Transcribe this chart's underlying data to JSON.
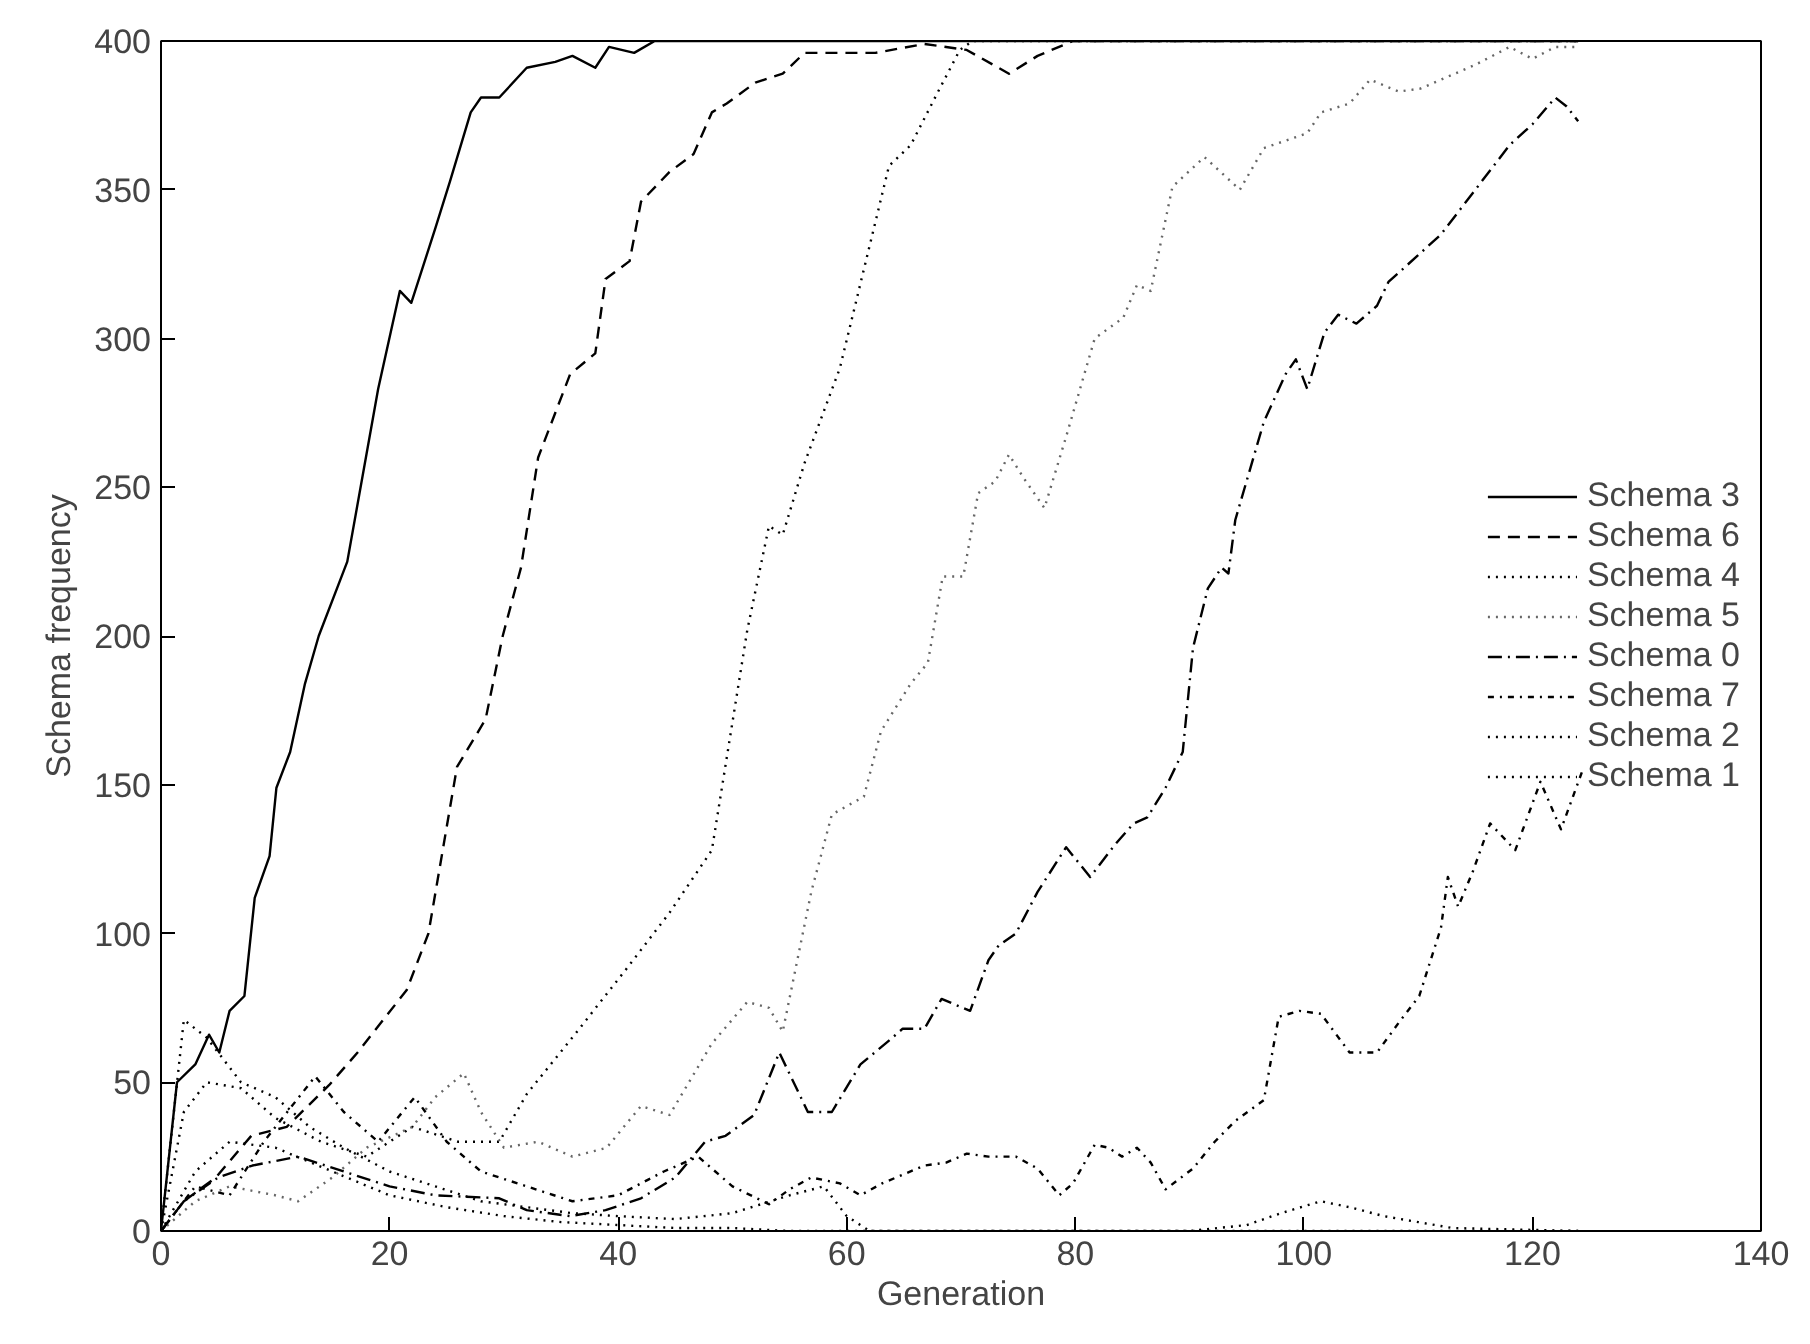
{
  "chart_data": {
    "type": "line",
    "xlabel": "Generation",
    "ylabel": "Schema frequency",
    "xlim": [
      0,
      140
    ],
    "ylim": [
      0,
      400
    ],
    "xticks": [
      0,
      20,
      40,
      60,
      80,
      100,
      120,
      140
    ],
    "yticks": [
      0,
      50,
      100,
      150,
      200,
      250,
      300,
      350,
      400
    ],
    "grid": false,
    "legend": "right",
    "marker": "none",
    "series": [
      {
        "name": "Schema 3",
        "color": "#000000",
        "line_style": "solid",
        "x": [
          0,
          1.4,
          3,
          4.2,
          5.1,
          6,
          7.3,
          8.2,
          9.5,
          10.1,
          11.3,
          12.6,
          13.8,
          16.3,
          19,
          20.9,
          21.9,
          24,
          25.3,
          27.1,
          28,
          29.6,
          32,
          34.5,
          36,
          38,
          39.2,
          41.4,
          43.2,
          124
        ],
        "values": [
          0,
          50,
          56,
          66,
          60,
          74,
          79,
          112,
          126,
          149,
          161,
          184,
          200,
          225,
          283,
          316,
          312,
          337,
          353,
          376,
          381,
          381,
          391,
          393,
          395,
          391,
          398,
          396,
          400,
          400
        ]
      },
      {
        "name": "Schema 6",
        "color": "#000000",
        "line_style": "dashed",
        "x": [
          0,
          2,
          4.8,
          7.9,
          11,
          14.7,
          17.2,
          21.5,
          23.4,
          25.9,
          28.4,
          29.9,
          31.5,
          33,
          35.8,
          38,
          38.9,
          41,
          42,
          44.5,
          46.6,
          48.2,
          49.5,
          52,
          54.4,
          56.3,
          62.5,
          66.8,
          70.5,
          74.2,
          76.7,
          79.8,
          124
        ],
        "values": [
          0,
          10,
          18,
          32,
          35,
          49,
          60,
          81,
          100,
          156,
          172,
          200,
          223,
          260,
          288,
          295,
          320,
          326,
          346,
          356,
          362,
          376,
          379,
          386,
          389,
          396,
          396,
          399,
          397,
          389,
          395,
          400,
          400
        ]
      },
      {
        "name": "Schema 4",
        "color": "#000000",
        "line_style": "dotted",
        "x": [
          0,
          2,
          4,
          7,
          10,
          14,
          18,
          22,
          26,
          29.6,
          32,
          36.4,
          40.7,
          44.5,
          48.2,
          51.3,
          53.2,
          54.4,
          56.3,
          59.4,
          62.5,
          63.7,
          65.6,
          68,
          69.9,
          71,
          124
        ],
        "values": [
          0,
          40,
          50,
          48,
          38,
          30,
          25,
          35,
          30,
          30,
          46,
          67,
          88,
          107,
          128,
          202,
          237,
          234,
          258,
          290,
          339,
          358,
          365,
          383,
          397,
          400,
          400
        ]
      },
      {
        "name": "Schema 5",
        "color": "#666666",
        "line_style": "dotted",
        "x": [
          0,
          3,
          6,
          10,
          12,
          15,
          18,
          22,
          24,
          26.5,
          28,
          30,
          33,
          36,
          39,
          42,
          44.5,
          48.2,
          51.3,
          53.2,
          54.4,
          56.9,
          58.7,
          61.5,
          63,
          65.6,
          67.1,
          68.4,
          70.2,
          71.5,
          73,
          74.2,
          75.5,
          77.3,
          79.2,
          81.7,
          84.2,
          85.4,
          86.6,
          88.5,
          91.3,
          94.4,
          96.5,
          100.3,
          101.5,
          104,
          105.8,
          108.3,
          110.2,
          115,
          118,
          120,
          122,
          124
        ],
        "values": [
          0,
          10,
          15,
          12,
          10,
          18,
          28,
          35,
          45,
          53,
          40,
          28,
          30,
          25,
          28,
          42,
          39,
          63,
          77,
          75,
          67,
          114,
          140,
          146,
          168,
          184,
          191,
          220,
          220,
          248,
          252,
          261,
          253,
          243,
          267,
          300,
          307,
          318,
          316,
          351,
          361,
          350,
          364,
          369,
          376,
          379,
          387,
          383,
          384,
          392,
          398,
          394,
          398,
          398
        ]
      },
      {
        "name": "Schema 0",
        "color": "#000000",
        "line_style": "dashdot",
        "x": [
          0,
          2,
          5,
          8,
          12,
          16,
          20,
          24,
          29.6,
          32,
          35.8,
          38.9,
          42,
          45,
          47.6,
          49.4,
          51.9,
          54.1,
          56.6,
          58.7,
          61.2,
          63.7,
          64.9,
          66.8,
          68.3,
          70.8,
          72.4,
          73.3,
          74.8,
          76.7,
          79.2,
          81.3,
          83.5,
          85.1,
          86.3,
          87.9,
          89.4,
          90.3,
          91.6,
          92.8,
          93.4,
          94,
          96.5,
          98.4,
          99.3,
          100.3,
          101.8,
          103,
          104.6,
          106.4,
          107.4,
          110,
          112,
          115,
          118,
          120,
          122,
          123,
          124
        ],
        "values": [
          0,
          10,
          18,
          22,
          25,
          20,
          15,
          12,
          11,
          7,
          5,
          7,
          11,
          18,
          30,
          32,
          39,
          60,
          40,
          40,
          56,
          64,
          68,
          68,
          78,
          74,
          91,
          96,
          100,
          114,
          129,
          119,
          130,
          137,
          139,
          149,
          161,
          196,
          216,
          223,
          221,
          239,
          272,
          288,
          293,
          283,
          302,
          308,
          305,
          311,
          319,
          328,
          335,
          350,
          365,
          372,
          381,
          378,
          373
        ]
      },
      {
        "name": "Schema 7",
        "color": "#000000",
        "line_style": "dotdash",
        "x": [
          0,
          3,
          6,
          9,
          13.5,
          16,
          19,
          22.2,
          25,
          28,
          32,
          36,
          40,
          44,
          47,
          50,
          53.2,
          55,
          56.9,
          59.4,
          61.2,
          63.1,
          66.8,
          68.7,
          70.5,
          72.4,
          74.8,
          76.7,
          78.6,
          79.8,
          81.7,
          82.9,
          84.1,
          85.4,
          86.6,
          87.9,
          90.3,
          92.2,
          94,
          96.5,
          97.8,
          99.6,
          101.5,
          104,
          106.4,
          108.3,
          110.1,
          112,
          112.6,
          113.5,
          114.8,
          116.3,
          118.5,
          120.7,
          122.5,
          124.4
        ],
        "values": [
          0,
          15,
          12,
          30,
          52,
          40,
          30,
          45,
          30,
          20,
          15,
          10,
          12,
          20,
          25,
          15,
          9,
          14,
          18,
          16,
          12,
          16,
          22,
          23,
          26,
          25,
          25,
          21,
          12,
          16,
          29,
          28,
          25,
          28,
          23,
          14,
          21,
          30,
          37,
          44,
          72,
          74,
          73,
          60,
          60,
          70,
          79,
          102,
          119,
          109,
          121,
          137,
          128,
          151,
          135,
          155
        ]
      },
      {
        "name": "Schema 2",
        "color": "#000000",
        "line_style": "dotted",
        "x": [
          0,
          3,
          6,
          10,
          15,
          20,
          25,
          30,
          35,
          40,
          45,
          50,
          55,
          60,
          70,
          80,
          90,
          95,
          98,
          101.5,
          104,
          107,
          110,
          113,
          124
        ],
        "values": [
          0,
          20,
          30,
          28,
          20,
          12,
          8,
          5,
          3,
          2,
          1,
          1,
          0,
          0,
          0,
          0,
          0,
          2,
          6,
          10,
          8,
          5,
          3,
          1,
          0
        ]
      },
      {
        "name": "Schema 1",
        "color": "#000000",
        "line_style": "dotted",
        "x": [
          0,
          2,
          4,
          7,
          10,
          13,
          16,
          20,
          24,
          28,
          32,
          36,
          40,
          45,
          50,
          55,
          58,
          60,
          62,
          70,
          124
        ],
        "values": [
          0,
          71,
          65,
          50,
          45,
          35,
          28,
          20,
          15,
          10,
          8,
          6,
          5,
          4,
          6,
          12,
          15,
          5,
          0,
          0,
          0
        ]
      }
    ]
  }
}
